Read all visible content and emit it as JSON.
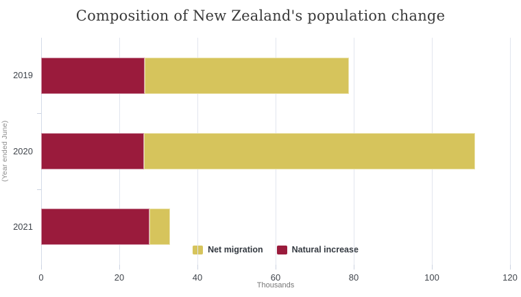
{
  "title": "Composition of New Zealand's population change",
  "chart_data": {
    "type": "bar",
    "orientation": "horizontal",
    "stacked": true,
    "title": "Composition of New Zealand's population change",
    "categories": [
      "2019",
      "2020",
      "2021"
    ],
    "series": [
      {
        "name": "Natural increase",
        "color": "#9A1B3C",
        "border_color": "#CE8FA3",
        "values": [
          26.5,
          26.3,
          27.7
        ]
      },
      {
        "name": "Net migration",
        "color": "#D6C45C",
        "border_color": "#EAE2A9",
        "values": [
          52.3,
          84.7,
          5.3
        ]
      }
    ],
    "xlabel": "Thousands",
    "ylabel": "(Year ended June)",
    "xlim": [
      0,
      120
    ],
    "xticks": [
      0,
      20,
      40,
      60,
      80,
      100,
      120
    ],
    "grid": true,
    "legend_position": "bottom-center",
    "legend_order": [
      "Net migration",
      "Natural increase"
    ]
  },
  "colors": {
    "grid": "#E1E5EE",
    "axis_line": "#D3DAE7",
    "tick": "#CBD2E0",
    "title_text": "#3A3A3A",
    "axis_text": "#3F444B",
    "muted_text": "#757575"
  }
}
